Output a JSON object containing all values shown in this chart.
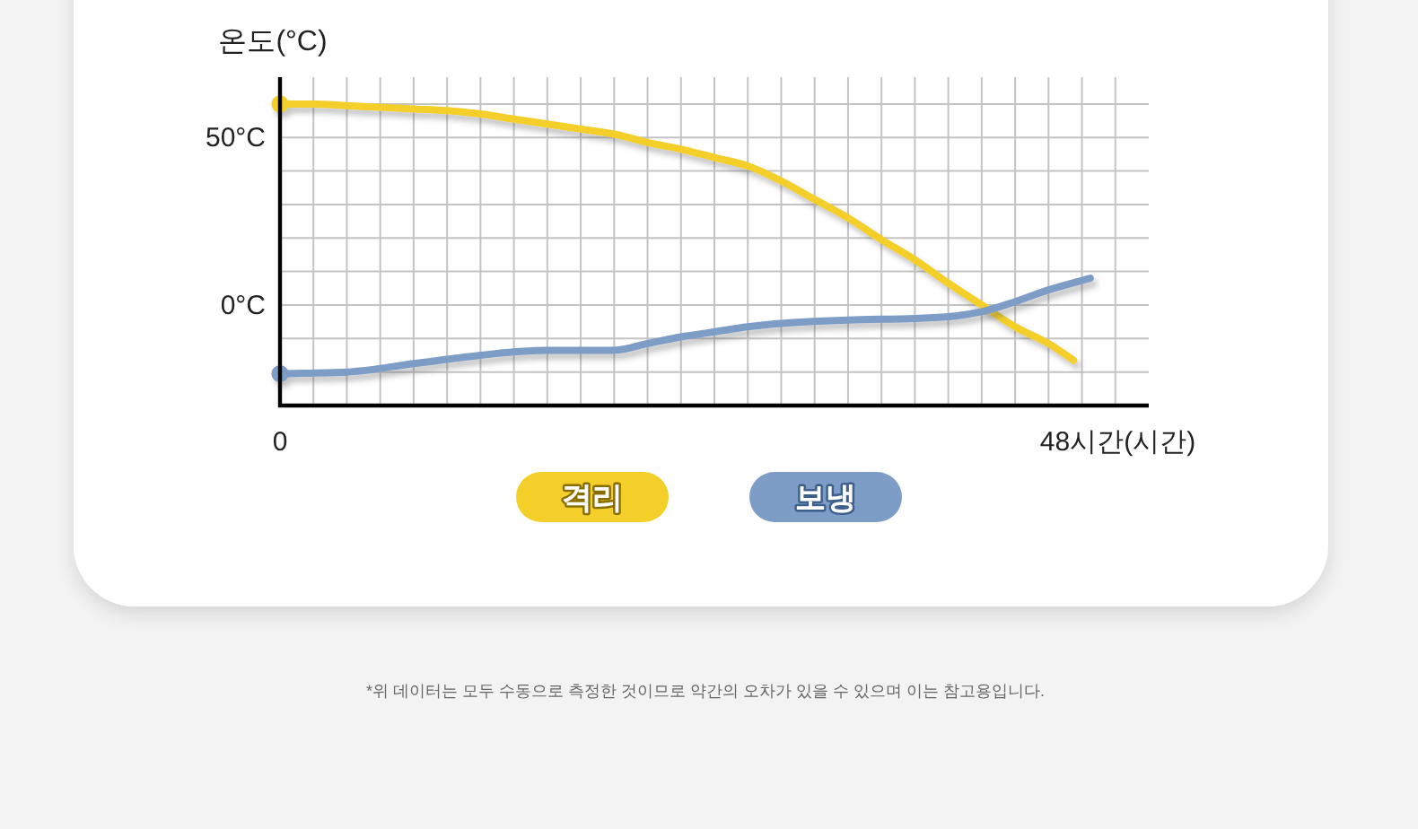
{
  "chart_data": {
    "type": "line",
    "ylabel": "온도(°C)",
    "xlabel": "(시간)",
    "annotations": [
      "*위 데이터는 모두 수동으로 측정한 것이므로 약간의 오차가 있을 수 있으며 이는 참고용입니다."
    ],
    "xlim": [
      0,
      52
    ],
    "xticks": [
      0,
      {
        "value": 2,
        "label": null
      },
      {
        "value": 4,
        "label": null
      },
      {
        "value": 6,
        "label": null
      },
      {
        "value": 8,
        "label": null
      },
      {
        "value": 10,
        "label": null
      },
      {
        "value": 12,
        "label": null
      },
      {
        "value": 14,
        "label": null
      },
      {
        "value": 16,
        "label": null
      },
      {
        "value": 18,
        "label": null
      },
      {
        "value": 20,
        "label": null
      },
      {
        "value": 22,
        "label": null
      },
      {
        "value": 24,
        "label": null
      },
      {
        "value": 26,
        "label": null
      },
      {
        "value": 28,
        "label": null
      },
      {
        "value": 30,
        "label": null
      },
      {
        "value": 32,
        "label": null
      },
      {
        "value": 34,
        "label": null
      },
      {
        "value": 36,
        "label": null
      },
      {
        "value": 38,
        "label": null
      },
      {
        "value": 40,
        "label": null
      },
      {
        "value": 42,
        "label": null
      },
      {
        "value": 44,
        "label": null
      },
      {
        "value": 46,
        "label": null
      },
      {
        "value": 48,
        "label": "48시간"
      },
      {
        "value": 50,
        "label": null
      }
    ],
    "ylim": [
      -30,
      68
    ],
    "yticks": [
      {
        "value": -20,
        "label": null
      },
      {
        "value": -10,
        "label": null
      },
      {
        "value": 0,
        "label": "0°C"
      },
      {
        "value": 10,
        "label": null
      },
      {
        "value": 20,
        "label": null
      },
      {
        "value": 30,
        "label": null
      },
      {
        "value": 40,
        "label": null
      },
      {
        "value": 50,
        "label": "50°C"
      },
      {
        "value": 60,
        "label": null
      }
    ],
    "grid": true,
    "legend": "bottom",
    "line_style": "solid",
    "series": [
      {
        "name": "격리",
        "color": "#f4cf2a",
        "x": [
          0,
          2,
          4,
          6,
          8,
          10,
          12,
          14,
          16,
          18,
          20,
          22,
          24,
          26,
          28,
          30,
          32,
          34,
          36,
          38,
          40,
          42,
          44,
          46,
          47.5
        ],
        "values": [
          60,
          60,
          59.5,
          59,
          58.5,
          58,
          57,
          55.5,
          54,
          52.5,
          51,
          48.5,
          46.5,
          44,
          41.5,
          37,
          31.5,
          26,
          19.5,
          13.5,
          6.5,
          0,
          -6.5,
          -11.5,
          -16.5
        ]
      },
      {
        "name": "보냉",
        "color": "#7d9cc6",
        "x": [
          0,
          4,
          8,
          12,
          14,
          16,
          18,
          20,
          22,
          24,
          26,
          28,
          30,
          34,
          38,
          40,
          42,
          44,
          46,
          48.5
        ],
        "values": [
          -20.5,
          -20,
          -17.5,
          -15,
          -14,
          -13.5,
          -13.5,
          -13.5,
          -11.5,
          -9.5,
          -8,
          -6.5,
          -5.5,
          -4.5,
          -4,
          -3.5,
          -2,
          1,
          4.5,
          8
        ]
      }
    ]
  }
}
